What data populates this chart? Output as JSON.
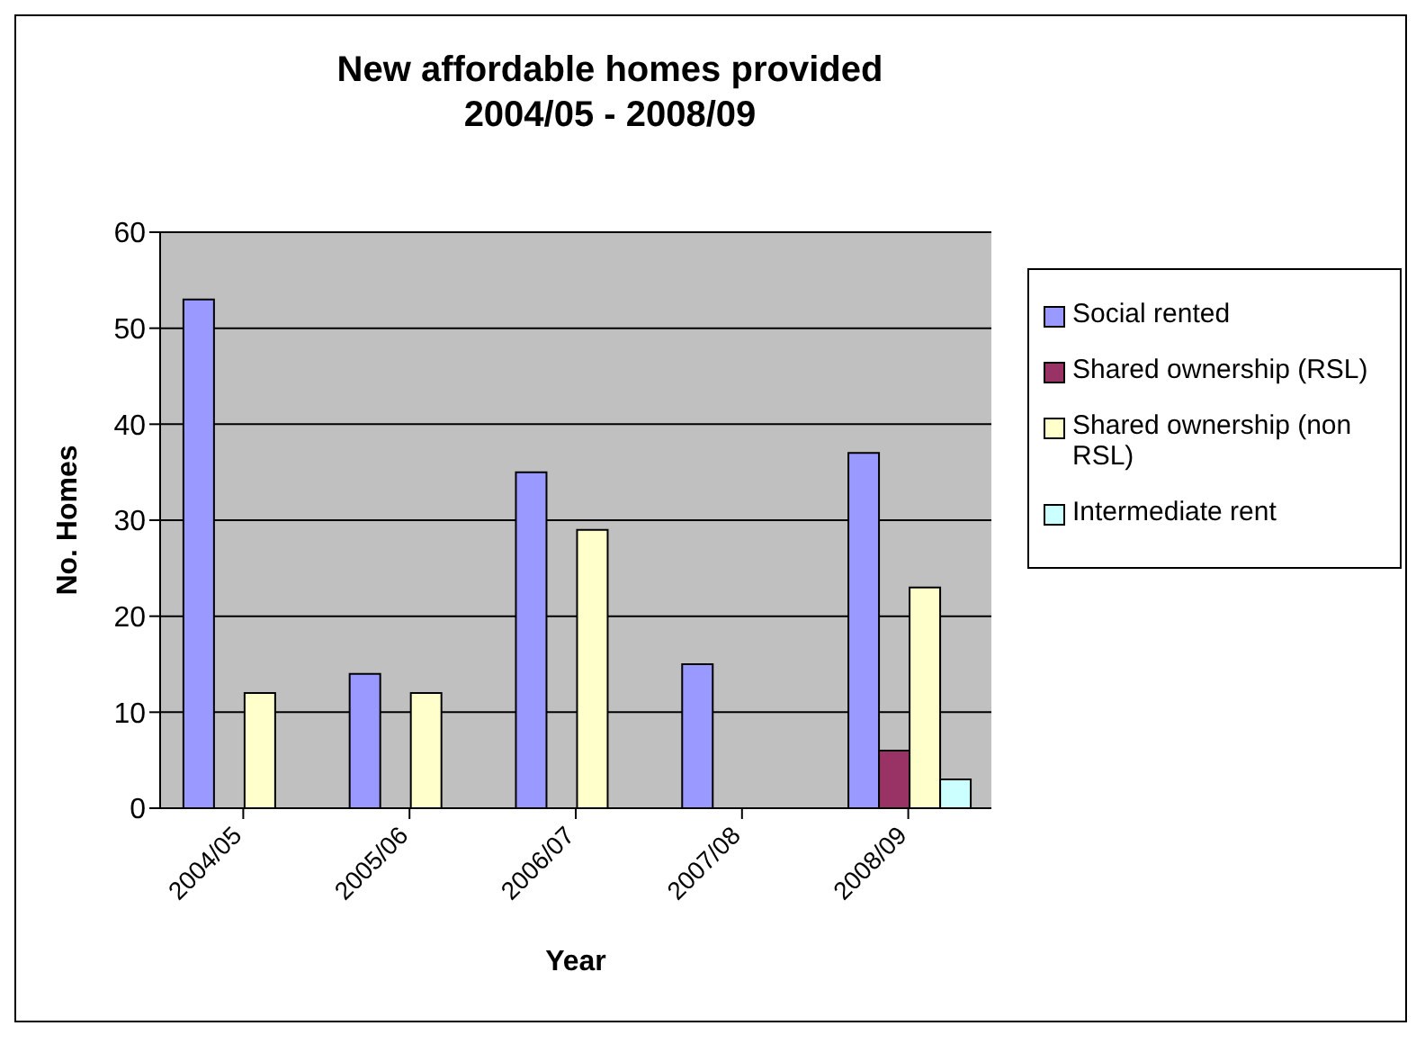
{
  "chart_data": {
    "type": "bar",
    "title": "New affordable homes provided 2004/05 - 2008/09",
    "xlabel": "Year",
    "ylabel": "No. Homes",
    "categories": [
      "2004/05",
      "2005/06",
      "2006/07",
      "2007/08",
      "2008/09"
    ],
    "series": [
      {
        "name": "Social rented",
        "color": "#9999ff",
        "values": [
          53,
          14,
          35,
          15,
          37
        ]
      },
      {
        "name": "Shared ownership (RSL)",
        "color": "#993366",
        "values": [
          null,
          null,
          null,
          null,
          6
        ]
      },
      {
        "name": "Shared ownership (non RSL)",
        "color": "#ffffcc",
        "values": [
          12,
          12,
          29,
          null,
          23
        ]
      },
      {
        "name": "Intermediate rent",
        "color": "#ccffff",
        "values": [
          null,
          null,
          null,
          null,
          3
        ]
      }
    ],
    "ylim": [
      0,
      60
    ],
    "yticks": [
      0,
      10,
      20,
      30,
      40,
      50,
      60
    ],
    "grid": "y",
    "legend": "right"
  }
}
